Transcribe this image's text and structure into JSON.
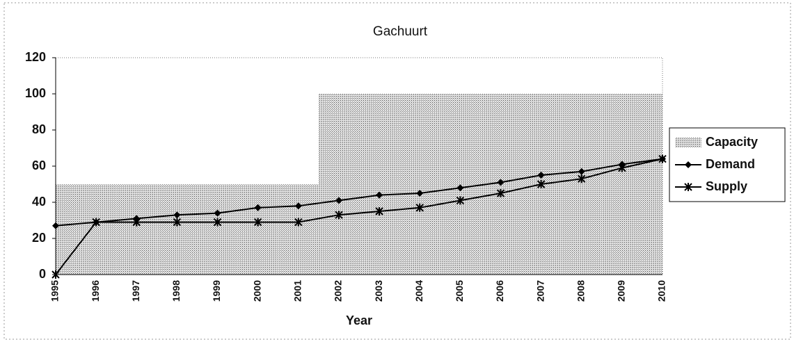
{
  "chart_data": {
    "type": "line",
    "title": "Gachuurt",
    "x_label": "Year",
    "categories": [
      "1995",
      "1996",
      "1997",
      "1998",
      "1999",
      "2000",
      "2001",
      "2002",
      "2003",
      "2004",
      "2005",
      "2006",
      "2007",
      "2008",
      "2009",
      "2010"
    ],
    "series": [
      {
        "name": "Capacity",
        "kind": "step-area",
        "color": "#b8b8b8",
        "values": [
          50,
          50,
          50,
          50,
          50,
          50,
          50,
          100,
          100,
          100,
          100,
          100,
          100,
          100,
          100,
          100
        ]
      },
      {
        "name": "Demand",
        "kind": "line",
        "marker": "diamond",
        "color": "#000000",
        "values": [
          27,
          29,
          31,
          33,
          34,
          37,
          38,
          41,
          44,
          45,
          48,
          51,
          55,
          57,
          61,
          64
        ]
      },
      {
        "name": "Supply",
        "kind": "line",
        "marker": "star",
        "color": "#000000",
        "values": [
          0,
          29,
          29,
          29,
          29,
          29,
          29,
          33,
          35,
          37,
          41,
          45,
          50,
          53,
          59,
          64
        ]
      }
    ],
    "ylim": [
      0,
      120
    ],
    "yticks": [
      0,
      20,
      40,
      60,
      80,
      100,
      120
    ],
    "grid": false,
    "legend": "right"
  }
}
